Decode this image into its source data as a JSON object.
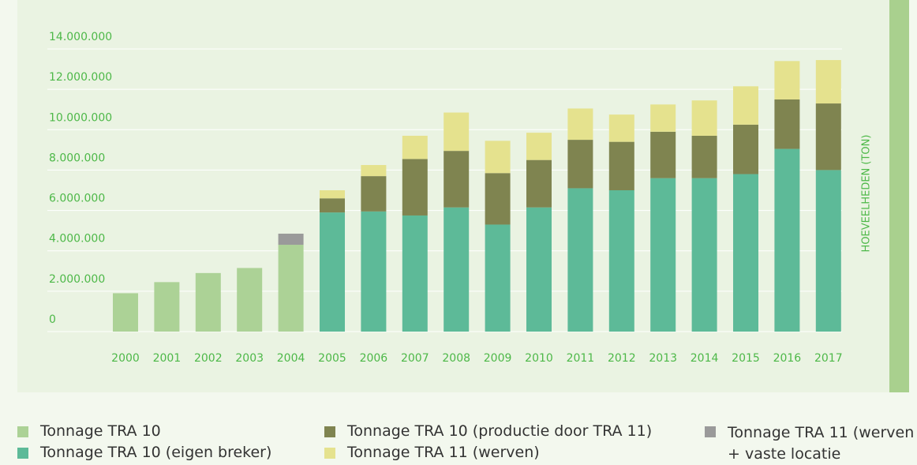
{
  "chart_data": {
    "type": "stacked-bar",
    "y_label": "HOEVEELHEDEN (TON)",
    "categories": [
      "2000",
      "2001",
      "2002",
      "2003",
      "2004",
      "2005",
      "2006",
      "2007",
      "2008",
      "2009",
      "2010",
      "2011",
      "2012",
      "2013",
      "2014",
      "2015",
      "2016",
      "2017"
    ],
    "series": [
      {
        "name": "Tonnage TRA 10",
        "color": "#acd296",
        "values": [
          1900000,
          2450000,
          2900000,
          3150000,
          4300000,
          null,
          null,
          null,
          null,
          null,
          null,
          null,
          null,
          null,
          null,
          null,
          null,
          null
        ]
      },
      {
        "name": "Tonnage TRA 10 (eigen breker)",
        "color": "#5dba98",
        "values": [
          null,
          null,
          null,
          null,
          null,
          5900000,
          5950000,
          5750000,
          6150000,
          5300000,
          6150000,
          7100000,
          7000000,
          7600000,
          7600000,
          7800000,
          9050000,
          8000000
        ]
      },
      {
        "name": "Tonnage TRA 10 (productie door TRA 11)",
        "color": "#7f8450",
        "values": [
          null,
          null,
          null,
          null,
          null,
          700000,
          1750000,
          2800000,
          2800000,
          2550000,
          2350000,
          2400000,
          2400000,
          2300000,
          2100000,
          2450000,
          2450000,
          3300000
        ]
      },
      {
        "name": "Tonnage TRA 11 (werven)",
        "color": "#e5e28e",
        "values": [
          null,
          null,
          null,
          null,
          null,
          400000,
          550000,
          1150000,
          1900000,
          1600000,
          1350000,
          1550000,
          1350000,
          1350000,
          1750000,
          1900000,
          1900000,
          2150000
        ]
      },
      {
        "name": "Tonnage TRA 11 (werven + vaste locatie",
        "color": "#9a9a9a",
        "values": [
          null,
          null,
          null,
          null,
          550000,
          null,
          null,
          null,
          null,
          null,
          null,
          null,
          null,
          null,
          null,
          null,
          null,
          null
        ]
      }
    ],
    "ylim": [
      0,
      14000000
    ],
    "yticks": [
      0,
      {
        "value": 2000000,
        "label": "2.000.000"
      },
      {
        "value": 4000000,
        "label": "4.000.000"
      },
      {
        "value": 6000000,
        "label": "6.000.000"
      },
      {
        "value": 8000000,
        "label": "8.000.000"
      },
      {
        "value": 10000000,
        "label": "10.000.000"
      },
      {
        "value": 12000000,
        "label": "12.000.000"
      },
      {
        "value": 14000000,
        "label": "14.000.000"
      }
    ],
    "grid": true
  }
}
